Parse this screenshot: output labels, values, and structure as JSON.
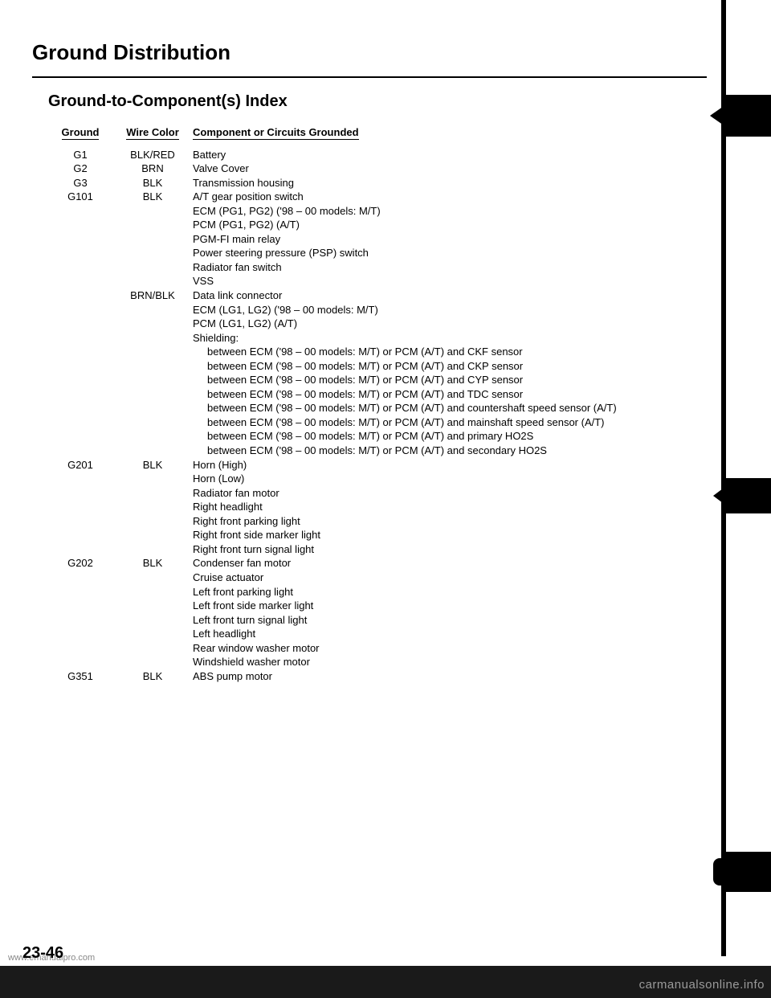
{
  "title": "Ground Distribution",
  "subtitle": "Ground-to-Component(s) Index",
  "headers": {
    "ground": "Ground",
    "wire": "Wire Color",
    "comp": "Component or Circuits Grounded"
  },
  "rows": [
    {
      "ground": "G1",
      "wire": "BLK/RED",
      "comp": [
        "Battery"
      ]
    },
    {
      "ground": "G2",
      "wire": "BRN",
      "comp": [
        "Valve Cover"
      ]
    },
    {
      "ground": "G3",
      "wire": "BLK",
      "comp": [
        "Transmission housing"
      ]
    },
    {
      "ground": "G101",
      "wire": "BLK",
      "comp": [
        "A/T gear position switch",
        "ECM (PG1, PG2) ('98 – 00 models: M/T)",
        "PCM (PG1, PG2) (A/T)",
        "PGM-FI main relay",
        "Power steering pressure (PSP) switch",
        "Radiator fan switch",
        "VSS"
      ]
    },
    {
      "ground": "",
      "wire": "BRN/BLK",
      "comp": [
        "Data link connector",
        "ECM (LG1, LG2) ('98 – 00 models: M/T)",
        "PCM (LG1, LG2) (A/T)",
        "Shielding:"
      ],
      "indent": [
        "between ECM ('98 – 00 models: M/T) or PCM (A/T) and CKF sensor",
        "between ECM ('98 – 00 models: M/T) or PCM (A/T) and CKP sensor",
        "between ECM ('98 – 00 models: M/T) or PCM (A/T) and CYP sensor",
        "between ECM ('98 – 00 models: M/T) or PCM (A/T) and TDC sensor",
        "between ECM ('98 – 00 models: M/T) or PCM (A/T) and countershaft speed sensor (A/T)",
        "between ECM ('98 – 00 models: M/T) or PCM (A/T) and mainshaft speed sensor (A/T)",
        "between ECM ('98 – 00 models: M/T) or PCM (A/T) and primary HO2S",
        "between ECM ('98 – 00 models: M/T) or PCM (A/T) and secondary HO2S"
      ]
    },
    {
      "ground": "G201",
      "wire": "BLK",
      "comp": [
        "Horn (High)",
        "Horn (Low)",
        "Radiator fan motor",
        "Right headlight",
        "Right front parking light",
        "Right front side marker light",
        "Right front turn signal light"
      ]
    },
    {
      "ground": "G202",
      "wire": "BLK",
      "comp": [
        "Condenser fan motor",
        "Cruise actuator",
        "Left front parking light",
        "Left front side marker light",
        "Left front turn signal light",
        "Left headlight",
        "Rear window washer motor",
        "Windshield washer motor"
      ]
    },
    {
      "ground": "G351",
      "wire": "BLK",
      "comp": [
        "ABS pump motor"
      ]
    }
  ],
  "page_number": "23-46",
  "watermark_left": "www.emanualpro.com",
  "watermark_right": "carmanualsonline.info"
}
